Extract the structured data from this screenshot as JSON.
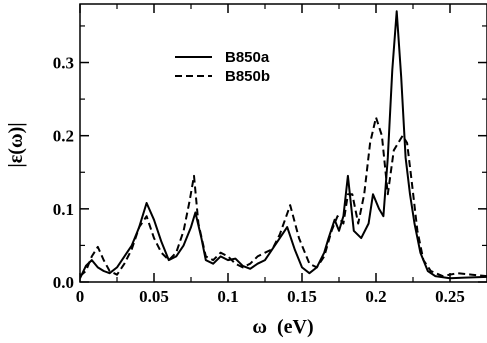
{
  "chart_data": {
    "type": "line",
    "xlabel": "ω  (eV)",
    "ylabel": "|ε(ω)|",
    "xlim": [
      0,
      0.275
    ],
    "ylim": [
      0,
      0.38
    ],
    "xticks": [
      0,
      0.05,
      0.1,
      0.15,
      0.2,
      0.25
    ],
    "xtick_labels": [
      "0",
      "0.05",
      "0.1",
      "0.15",
      "0.2",
      "0.25"
    ],
    "yticks": [
      0,
      0.1,
      0.2,
      0.3
    ],
    "ytick_labels": [
      "0.0",
      "0.1",
      "0.2",
      "0.3"
    ],
    "grid": false,
    "legend_position": "top-left",
    "series": [
      {
        "name": "B850a",
        "style": "solid",
        "color": "#000000",
        "x": [
          0,
          0.004,
          0.008,
          0.012,
          0.016,
          0.02,
          0.025,
          0.03,
          0.035,
          0.04,
          0.045,
          0.05,
          0.055,
          0.06,
          0.065,
          0.07,
          0.075,
          0.078,
          0.082,
          0.085,
          0.09,
          0.095,
          0.1,
          0.105,
          0.11,
          0.115,
          0.12,
          0.125,
          0.13,
          0.135,
          0.14,
          0.145,
          0.15,
          0.155,
          0.16,
          0.165,
          0.168,
          0.172,
          0.175,
          0.178,
          0.181,
          0.185,
          0.19,
          0.195,
          0.198,
          0.202,
          0.205,
          0.208,
          0.211,
          0.214,
          0.217,
          0.22,
          0.223,
          0.226,
          0.23,
          0.235,
          0.24,
          0.25,
          0.26,
          0.275
        ],
        "y": [
          0.005,
          0.022,
          0.03,
          0.02,
          0.015,
          0.012,
          0.02,
          0.035,
          0.05,
          0.075,
          0.108,
          0.085,
          0.055,
          0.03,
          0.035,
          0.05,
          0.075,
          0.095,
          0.06,
          0.03,
          0.025,
          0.035,
          0.03,
          0.032,
          0.022,
          0.018,
          0.025,
          0.03,
          0.045,
          0.06,
          0.075,
          0.045,
          0.02,
          0.012,
          0.02,
          0.04,
          0.06,
          0.085,
          0.07,
          0.09,
          0.145,
          0.07,
          0.06,
          0.08,
          0.12,
          0.1,
          0.09,
          0.17,
          0.29,
          0.37,
          0.28,
          0.17,
          0.12,
          0.08,
          0.04,
          0.015,
          0.008,
          0.005,
          0.006,
          0.007
        ]
      },
      {
        "name": "B850b",
        "style": "dashed",
        "color": "#000000",
        "x": [
          0,
          0.004,
          0.008,
          0.012,
          0.016,
          0.02,
          0.025,
          0.03,
          0.035,
          0.04,
          0.045,
          0.05,
          0.055,
          0.06,
          0.065,
          0.07,
          0.074,
          0.077,
          0.08,
          0.085,
          0.09,
          0.095,
          0.1,
          0.105,
          0.11,
          0.115,
          0.12,
          0.125,
          0.13,
          0.135,
          0.142,
          0.148,
          0.155,
          0.16,
          0.165,
          0.17,
          0.174,
          0.178,
          0.181,
          0.184,
          0.188,
          0.192,
          0.196,
          0.2,
          0.204,
          0.208,
          0.212,
          0.215,
          0.218,
          0.221,
          0.224,
          0.228,
          0.232,
          0.237,
          0.245,
          0.255,
          0.265,
          0.275
        ],
        "y": [
          0.008,
          0.015,
          0.035,
          0.048,
          0.03,
          0.015,
          0.01,
          0.025,
          0.045,
          0.075,
          0.09,
          0.06,
          0.04,
          0.03,
          0.04,
          0.07,
          0.11,
          0.145,
          0.08,
          0.035,
          0.03,
          0.04,
          0.035,
          0.025,
          0.02,
          0.025,
          0.035,
          0.04,
          0.045,
          0.065,
          0.105,
          0.06,
          0.025,
          0.02,
          0.035,
          0.07,
          0.09,
          0.08,
          0.12,
          0.12,
          0.08,
          0.12,
          0.19,
          0.225,
          0.2,
          0.12,
          0.18,
          0.19,
          0.2,
          0.19,
          0.14,
          0.07,
          0.03,
          0.015,
          0.008,
          0.012,
          0.01,
          0.008
        ]
      }
    ]
  }
}
